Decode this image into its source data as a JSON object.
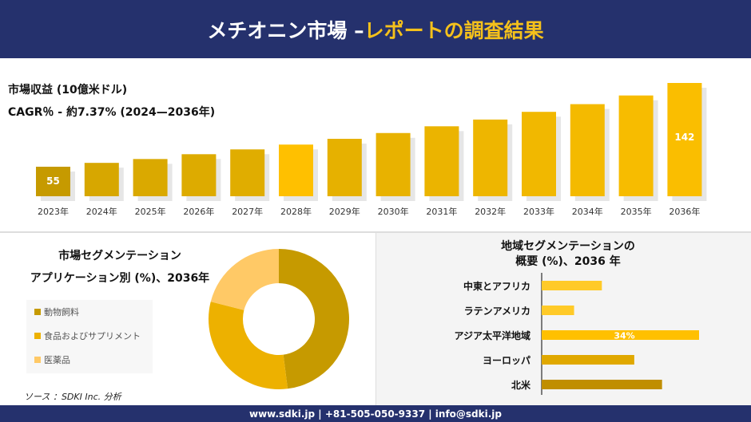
{
  "header": {
    "title_main": "メチオニン市場 –",
    "title_highlight": "レポートの調査結果"
  },
  "footer": {
    "contact": "www.sdki.jp | +81-505-050-9337 | info@sdki.jp"
  },
  "source": "ソース ：SDKI Inc. 分析",
  "colors": {
    "navy": "#25316D",
    "gold_dark": "#C69A00",
    "gold": "#F0B400",
    "gold_light": "#FFC966",
    "bright": "#FFC000"
  },
  "chart_data": [
    {
      "type": "bar",
      "title": "市場収益 (10億米ドル)",
      "subtitle": "CAGR％ - 約7.37% (2024—2036年)",
      "categories": [
        "2023年",
        "2024年",
        "2025年",
        "2026年",
        "2027年",
        "2028年",
        "2029年",
        "2030年",
        "2031年",
        "2032年",
        "2033年",
        "2034年",
        "2035年",
        "2036年"
      ],
      "values": [
        55,
        59,
        63,
        68,
        73,
        78,
        84,
        90,
        97,
        104,
        112,
        120,
        129,
        142
      ],
      "data_labels": {
        "0": "55",
        "13": "142"
      },
      "grid": false
    },
    {
      "type": "pie",
      "donut": true,
      "title": "市場セグメンテーション",
      "subtitle": "アプリケーション別 (%)、2036年",
      "categories": [
        "動物飼料",
        "食品およびサプリメント",
        "医薬品"
      ],
      "values": [
        48,
        31,
        21
      ],
      "colors": [
        "#C69A00",
        "#EDB100",
        "#FFC966"
      ],
      "legend": "left"
    },
    {
      "type": "bar",
      "orientation": "horizontal",
      "title": "地域セグメンテーションの",
      "subtitle": "概要 (%)、2036 年",
      "categories": [
        "中東とアフリカ",
        "ラテンアメリカ",
        "アジア太平洋地域",
        "ヨーロッパ",
        "北米"
      ],
      "values": [
        13,
        7,
        34,
        20,
        26
      ],
      "data_labels": {
        "2": "34%"
      },
      "colors": [
        "#FFCA28",
        "#FFCA28",
        "#FFC000",
        "#E0A800",
        "#C08E00"
      ]
    }
  ]
}
